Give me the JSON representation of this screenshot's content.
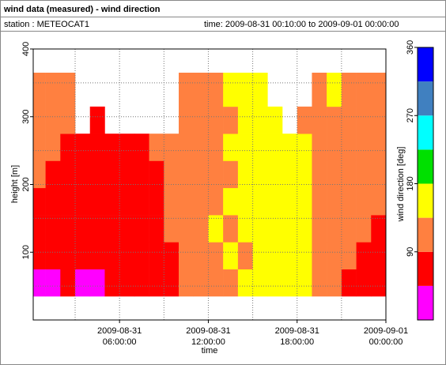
{
  "header": {
    "title": "wind data (measured) - wind direction",
    "station": "station : METEOCAT1",
    "time": "time: 2009-08-31 00:10:00 to 2009-09-01 00:00:00"
  },
  "chart_data": {
    "type": "heatmap",
    "xlabel": "time",
    "ylabel": "height [m]",
    "xlim": [
      0.1667,
      24
    ],
    "ylim": [
      0,
      400
    ],
    "xticks": [
      {
        "value": 6,
        "label": "2009-08-31 06:00:00"
      },
      {
        "value": 12,
        "label": "2009-08-31 12:00:00"
      },
      {
        "value": 18,
        "label": "2009-08-31 18:00:00"
      },
      {
        "value": 24,
        "label": "2009-09-01 00:00:00"
      }
    ],
    "minor_xticks": [
      3,
      9,
      15,
      21
    ],
    "yticks": [
      100,
      200,
      300,
      400
    ],
    "minor_yticks": [
      50,
      150,
      250,
      350
    ],
    "grid": true,
    "x_edges": [
      0.1667,
      1,
      2,
      3,
      4,
      5,
      6,
      7,
      8,
      9,
      10,
      11,
      12,
      13,
      14,
      15,
      16,
      17,
      18,
      19,
      20,
      21,
      22,
      23,
      24
    ],
    "y_edges": [
      35,
      75,
      115,
      155,
      195,
      235,
      275,
      315,
      365
    ],
    "values": [
      [
        20,
        65,
        65,
        65,
        110,
        110,
        110,
        110
      ],
      [
        20,
        65,
        65,
        65,
        65,
        110,
        110,
        110
      ],
      [
        65,
        65,
        65,
        65,
        65,
        65,
        110,
        110
      ],
      [
        20,
        65,
        65,
        65,
        65,
        65,
        null,
        null
      ],
      [
        20,
        65,
        65,
        65,
        65,
        65,
        65,
        null
      ],
      [
        65,
        65,
        65,
        65,
        65,
        65,
        null,
        null
      ],
      [
        65,
        65,
        65,
        65,
        65,
        65,
        null,
        null
      ],
      [
        65,
        65,
        65,
        65,
        65,
        65,
        null,
        null
      ],
      [
        65,
        65,
        65,
        65,
        65,
        110,
        null,
        null
      ],
      [
        65,
        65,
        110,
        110,
        110,
        110,
        null,
        null
      ],
      [
        110,
        110,
        110,
        110,
        110,
        110,
        110,
        110
      ],
      [
        110,
        110,
        110,
        110,
        110,
        110,
        110,
        110
      ],
      [
        110,
        110,
        155,
        110,
        110,
        110,
        110,
        110
      ],
      [
        110,
        155,
        110,
        155,
        110,
        155,
        110,
        155
      ],
      [
        155,
        110,
        155,
        155,
        155,
        155,
        155,
        155
      ],
      [
        155,
        155,
        155,
        155,
        155,
        155,
        155,
        155
      ],
      [
        155,
        155,
        155,
        155,
        155,
        155,
        155,
        null
      ],
      [
        155,
        155,
        155,
        155,
        155,
        155,
        null,
        null
      ],
      [
        155,
        155,
        155,
        155,
        155,
        155,
        110,
        null
      ],
      [
        110,
        110,
        110,
        110,
        110,
        110,
        110,
        110
      ],
      [
        110,
        110,
        110,
        110,
        110,
        110,
        110,
        155
      ],
      [
        65,
        110,
        110,
        110,
        110,
        110,
        110,
        110
      ],
      [
        65,
        65,
        110,
        110,
        110,
        110,
        110,
        110
      ],
      [
        65,
        65,
        65,
        110,
        110,
        110,
        110,
        110
      ]
    ],
    "colorbar": {
      "label": "wind direction [deg]",
      "lim": [
        0,
        360
      ],
      "bounds": [
        0,
        45,
        90,
        135,
        180,
        225,
        270,
        315,
        360
      ],
      "colors": [
        "#ff00ff",
        "#ff0000",
        "#ff8040",
        "#ffff00",
        "#00e000",
        "#00ffff",
        "#4080c0",
        "#0000ff"
      ],
      "ticks": [
        90,
        180,
        270,
        360
      ]
    }
  }
}
